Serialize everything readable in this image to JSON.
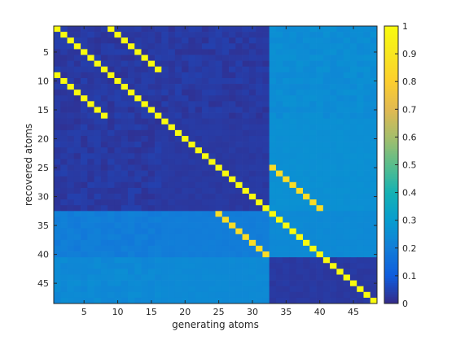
{
  "chart_data": {
    "type": "heatmap",
    "title": "",
    "xlabel": "generating atoms",
    "ylabel": "recovered atoms",
    "n_rows": 48,
    "n_cols": 48,
    "xlim": [
      0.5,
      48.5
    ],
    "ylim": [
      0.5,
      48.5
    ],
    "y_direction": "top-to-bottom",
    "x_ticks": [
      5,
      10,
      15,
      20,
      25,
      30,
      35,
      40,
      45
    ],
    "y_ticks": [
      5,
      10,
      15,
      20,
      25,
      30,
      35,
      40,
      45
    ],
    "colormap": "parula",
    "clim": [
      0,
      1
    ],
    "colorbar": {
      "position": "right",
      "ticks": [
        0,
        0.1,
        0.2,
        0.3,
        0.4,
        0.5,
        0.6,
        0.7,
        0.8,
        0.9,
        1
      ],
      "tick_labels": [
        "0",
        "0.1",
        "0.2",
        "0.3",
        "0.4",
        "0.5",
        "0.6",
        "0.7",
        "0.8",
        "0.9",
        "1"
      ]
    },
    "grid": false,
    "structure": {
      "description_values": "approximate cell values read from colors",
      "diagonal_value": 1.0,
      "off_diagonal_band_value": 0.86,
      "off_diagonal_band": [
        [
          33,
          25
        ],
        [
          34,
          26
        ],
        [
          35,
          27
        ],
        [
          36,
          28
        ],
        [
          37,
          29
        ],
        [
          38,
          30
        ],
        [
          39,
          31
        ],
        [
          40,
          32
        ],
        [
          25,
          33
        ],
        [
          26,
          34
        ],
        [
          27,
          35
        ],
        [
          28,
          36
        ],
        [
          29,
          37
        ],
        [
          30,
          38
        ],
        [
          31,
          39
        ],
        [
          32,
          40
        ]
      ],
      "extra_diagonal": [
        [
          9,
          1
        ],
        [
          10,
          2
        ],
        [
          11,
          3
        ],
        [
          12,
          4
        ],
        [
          13,
          5
        ],
        [
          14,
          6
        ],
        [
          15,
          7
        ],
        [
          16,
          8
        ],
        [
          1,
          9
        ],
        [
          2,
          10
        ],
        [
          3,
          11
        ],
        [
          4,
          12
        ],
        [
          5,
          13
        ],
        [
          6,
          14
        ],
        [
          7,
          15
        ],
        [
          8,
          16
        ]
      ],
      "blocks": [
        {
          "rows": [
            1,
            32
          ],
          "cols": [
            1,
            32
          ],
          "value": 0.03
        },
        {
          "rows": [
            1,
            16
          ],
          "cols": [
            33,
            48
          ],
          "value": 0.25
        },
        {
          "rows": [
            17,
            32
          ],
          "cols": [
            33,
            48
          ],
          "value": 0.26
        },
        {
          "rows": [
            33,
            40
          ],
          "cols": [
            1,
            32
          ],
          "value": 0.2
        },
        {
          "rows": [
            41,
            48
          ],
          "cols": [
            1,
            32
          ],
          "value": 0.24
        },
        {
          "rows": [
            33,
            40
          ],
          "cols": [
            33,
            48
          ],
          "value": 0.24
        },
        {
          "rows": [
            41,
            48
          ],
          "cols": [
            33,
            48
          ],
          "value": 0.03
        }
      ]
    }
  }
}
